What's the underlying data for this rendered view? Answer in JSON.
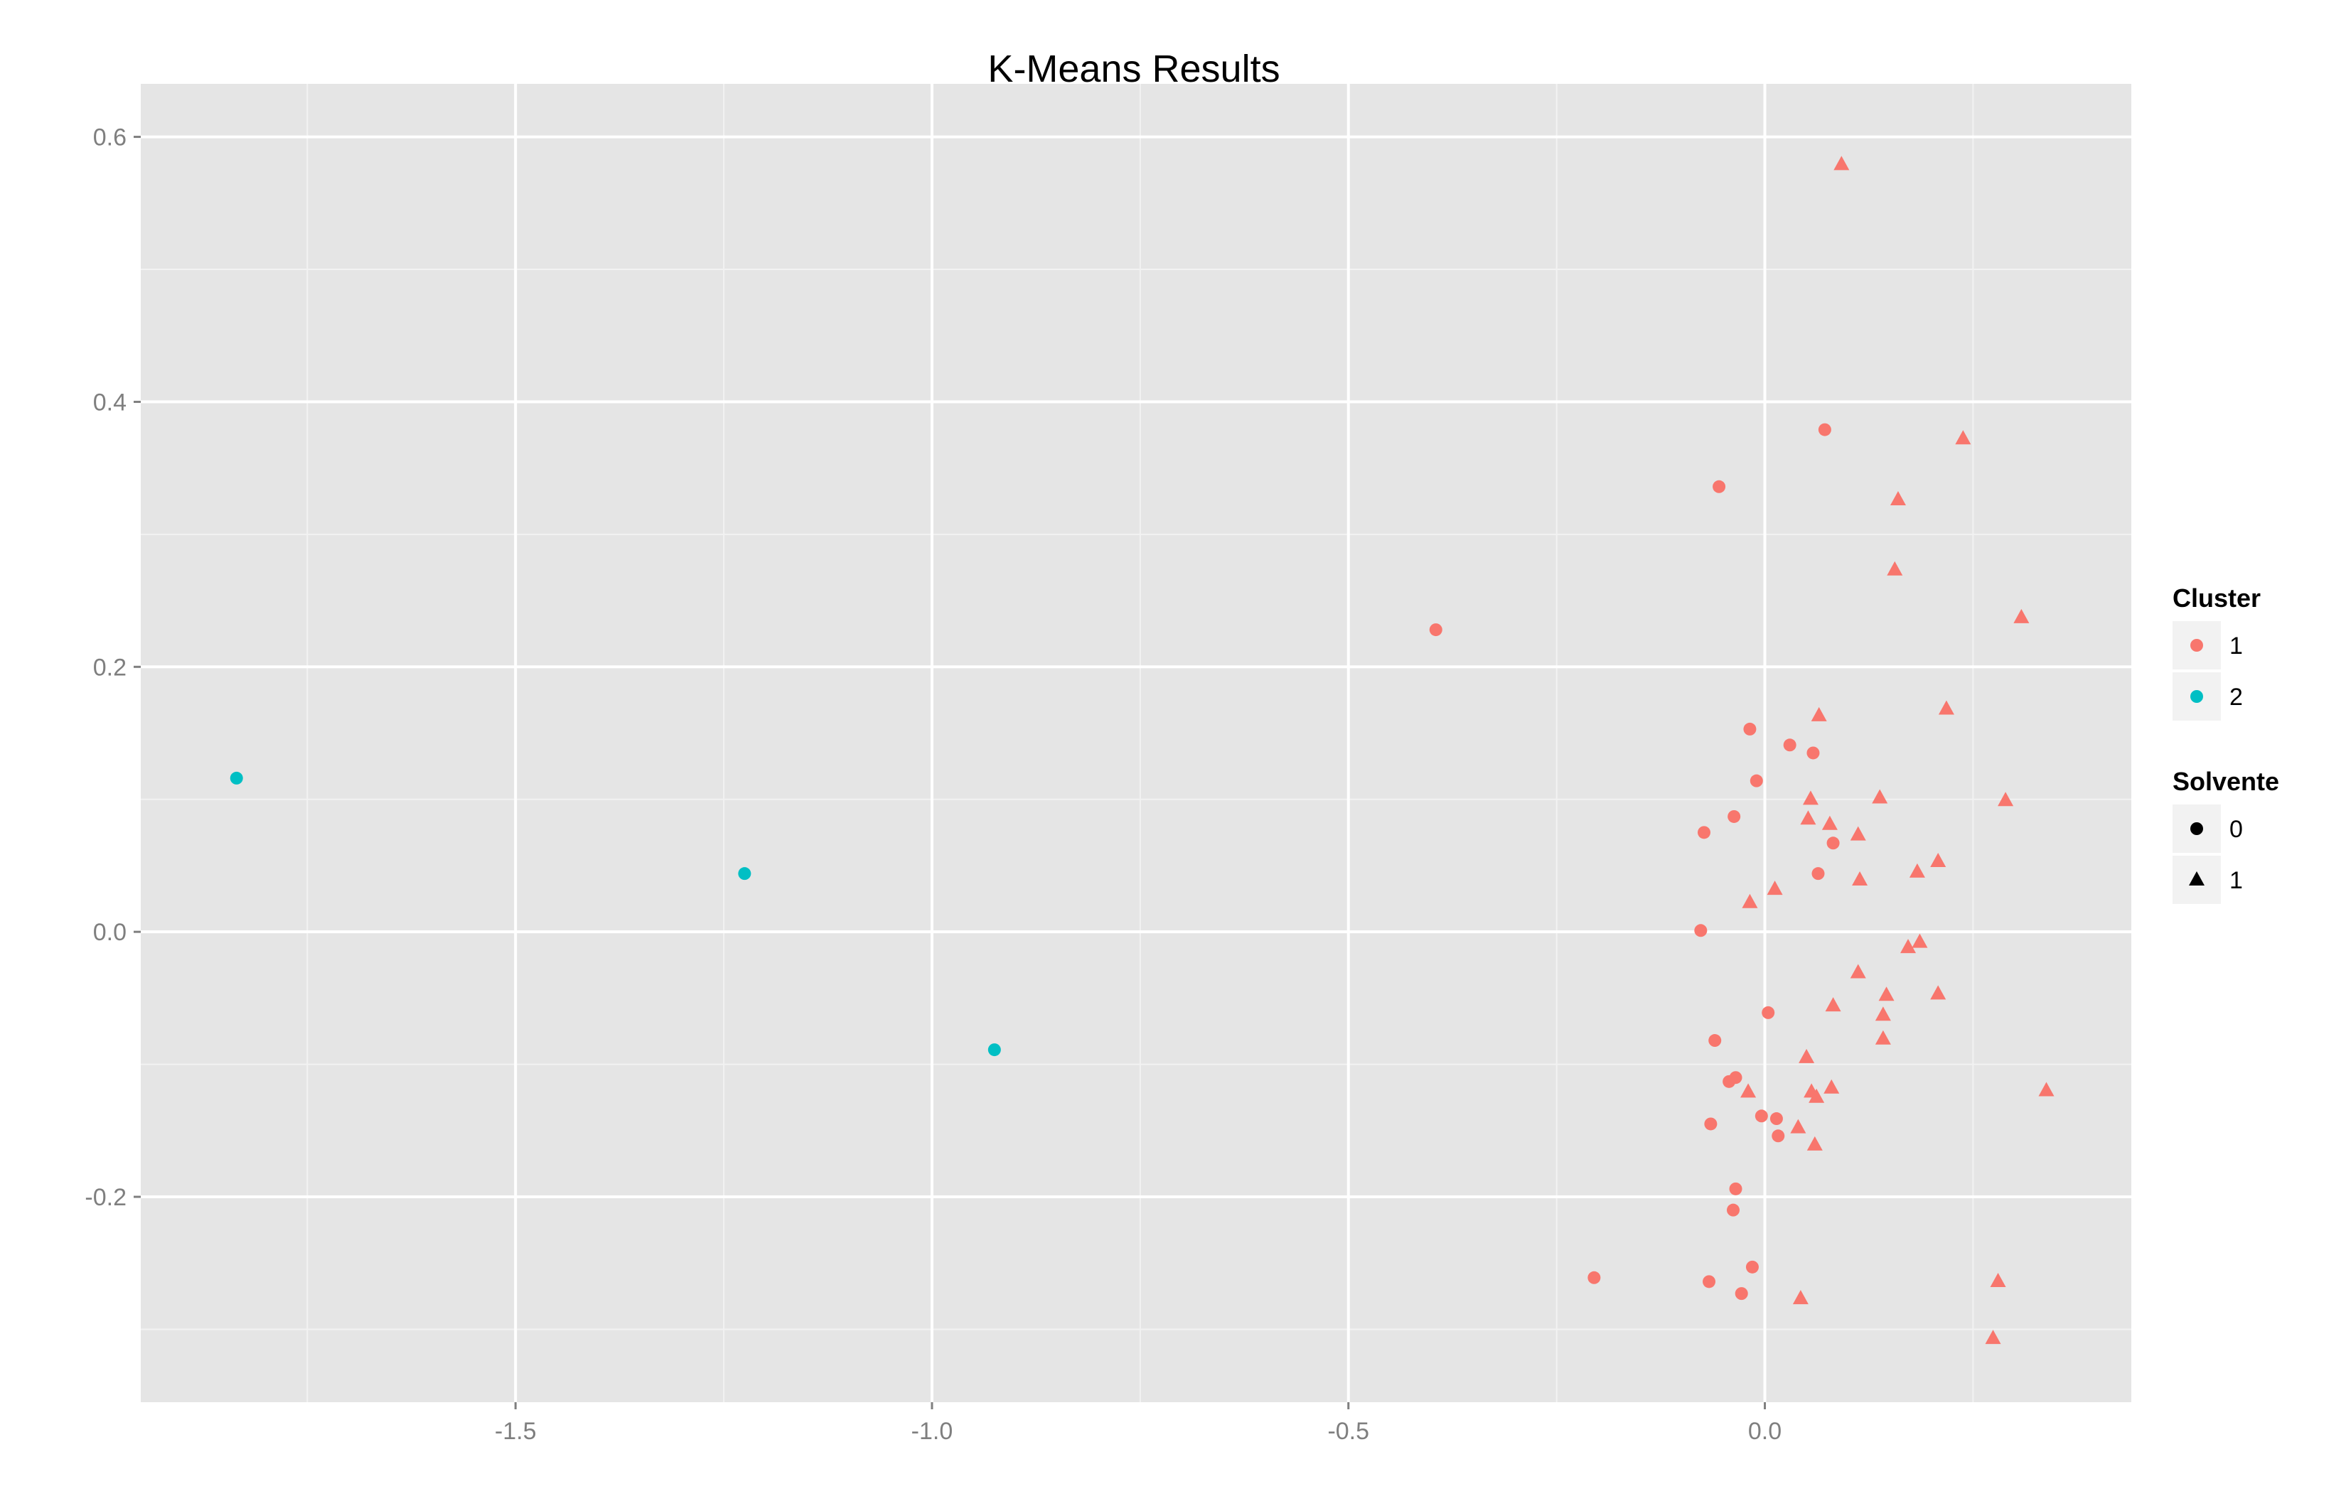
{
  "chart_data": {
    "type": "scatter",
    "title": "K-Means Results",
    "xlabel": "",
    "ylabel": "",
    "xlim": [
      -1.95,
      0.44
    ],
    "ylim": [
      -0.355,
      0.64
    ],
    "x_ticks": [
      {
        "value": -1.5,
        "label": "-1.5"
      },
      {
        "value": -1.0,
        "label": "-1.0"
      },
      {
        "value": -0.5,
        "label": "-0.5"
      },
      {
        "value": 0.0,
        "label": "0.0"
      }
    ],
    "y_ticks": [
      {
        "value": 0.6,
        "label": "0.6"
      },
      {
        "value": 0.4,
        "label": "0.4"
      },
      {
        "value": 0.2,
        "label": "0.2"
      },
      {
        "value": 0.0,
        "label": "0.0"
      },
      {
        "value": -0.2,
        "label": "-0.2"
      }
    ],
    "grid": true,
    "legend_position": "right",
    "colors": {
      "panel_bg": "#E5E5E5",
      "grid_major": "#FFFFFF",
      "grid_minor": "#F2F2F2",
      "cluster_1": "#F8766D",
      "cluster_2": "#00BFC4",
      "legend_key_bg": "#F2F2F2",
      "shape_key": "#000000"
    },
    "legend": {
      "cluster": {
        "title": "Cluster",
        "entries": [
          {
            "label": "1",
            "color": "#F8766D"
          },
          {
            "label": "2",
            "color": "#00BFC4"
          }
        ]
      },
      "solvente": {
        "title": "Solvente",
        "entries": [
          {
            "label": "0",
            "shape": "circle"
          },
          {
            "label": "1",
            "shape": "triangle"
          }
        ]
      }
    },
    "points": [
      {
        "x": -1.835,
        "y": 0.116,
        "cluster": "2",
        "solvente": "0"
      },
      {
        "x": -1.225,
        "y": 0.044,
        "cluster": "2",
        "solvente": "0"
      },
      {
        "x": -0.925,
        "y": -0.089,
        "cluster": "2",
        "solvente": "0"
      },
      {
        "x": -0.395,
        "y": 0.228,
        "cluster": "1",
        "solvente": "0"
      },
      {
        "x": -0.055,
        "y": 0.336,
        "cluster": "1",
        "solvente": "0"
      },
      {
        "x": 0.072,
        "y": 0.379,
        "cluster": "1",
        "solvente": "0"
      },
      {
        "x": -0.018,
        "y": 0.153,
        "cluster": "1",
        "solvente": "0"
      },
      {
        "x": 0.03,
        "y": 0.141,
        "cluster": "1",
        "solvente": "0"
      },
      {
        "x": 0.058,
        "y": 0.135,
        "cluster": "1",
        "solvente": "0"
      },
      {
        "x": -0.01,
        "y": 0.114,
        "cluster": "1",
        "solvente": "0"
      },
      {
        "x": -0.037,
        "y": 0.087,
        "cluster": "1",
        "solvente": "0"
      },
      {
        "x": -0.073,
        "y": 0.075,
        "cluster": "1",
        "solvente": "0"
      },
      {
        "x": 0.082,
        "y": 0.067,
        "cluster": "1",
        "solvente": "0"
      },
      {
        "x": 0.064,
        "y": 0.044,
        "cluster": "1",
        "solvente": "0"
      },
      {
        "x": -0.077,
        "y": 0.001,
        "cluster": "1",
        "solvente": "0"
      },
      {
        "x": 0.004,
        "y": -0.061,
        "cluster": "1",
        "solvente": "0"
      },
      {
        "x": -0.06,
        "y": -0.082,
        "cluster": "1",
        "solvente": "0"
      },
      {
        "x": -0.035,
        "y": -0.11,
        "cluster": "1",
        "solvente": "0"
      },
      {
        "x": -0.043,
        "y": -0.113,
        "cluster": "1",
        "solvente": "0"
      },
      {
        "x": -0.004,
        "y": -0.139,
        "cluster": "1",
        "solvente": "0"
      },
      {
        "x": 0.014,
        "y": -0.141,
        "cluster": "1",
        "solvente": "0"
      },
      {
        "x": -0.065,
        "y": -0.145,
        "cluster": "1",
        "solvente": "0"
      },
      {
        "x": 0.016,
        "y": -0.154,
        "cluster": "1",
        "solvente": "0"
      },
      {
        "x": -0.035,
        "y": -0.194,
        "cluster": "1",
        "solvente": "0"
      },
      {
        "x": -0.038,
        "y": -0.21,
        "cluster": "1",
        "solvente": "0"
      },
      {
        "x": -0.015,
        "y": -0.253,
        "cluster": "1",
        "solvente": "0"
      },
      {
        "x": -0.205,
        "y": -0.261,
        "cluster": "1",
        "solvente": "0"
      },
      {
        "x": -0.067,
        "y": -0.264,
        "cluster": "1",
        "solvente": "0"
      },
      {
        "x": -0.028,
        "y": -0.273,
        "cluster": "1",
        "solvente": "0"
      },
      {
        "x": 0.092,
        "y": 0.579,
        "cluster": "1",
        "solvente": "1"
      },
      {
        "x": 0.238,
        "y": 0.372,
        "cluster": "1",
        "solvente": "1"
      },
      {
        "x": 0.16,
        "y": 0.326,
        "cluster": "1",
        "solvente": "1"
      },
      {
        "x": 0.156,
        "y": 0.273,
        "cluster": "1",
        "solvente": "1"
      },
      {
        "x": 0.308,
        "y": 0.237,
        "cluster": "1",
        "solvente": "1"
      },
      {
        "x": 0.218,
        "y": 0.168,
        "cluster": "1",
        "solvente": "1"
      },
      {
        "x": 0.065,
        "y": 0.163,
        "cluster": "1",
        "solvente": "1"
      },
      {
        "x": 0.138,
        "y": 0.101,
        "cluster": "1",
        "solvente": "1"
      },
      {
        "x": 0.289,
        "y": 0.099,
        "cluster": "1",
        "solvente": "1"
      },
      {
        "x": 0.055,
        "y": 0.1,
        "cluster": "1",
        "solvente": "1"
      },
      {
        "x": 0.052,
        "y": 0.085,
        "cluster": "1",
        "solvente": "1"
      },
      {
        "x": 0.078,
        "y": 0.081,
        "cluster": "1",
        "solvente": "1"
      },
      {
        "x": 0.112,
        "y": 0.073,
        "cluster": "1",
        "solvente": "1"
      },
      {
        "x": 0.208,
        "y": 0.053,
        "cluster": "1",
        "solvente": "1"
      },
      {
        "x": 0.183,
        "y": 0.045,
        "cluster": "1",
        "solvente": "1"
      },
      {
        "x": 0.114,
        "y": 0.039,
        "cluster": "1",
        "solvente": "1"
      },
      {
        "x": 0.012,
        "y": 0.032,
        "cluster": "1",
        "solvente": "1"
      },
      {
        "x": -0.018,
        "y": 0.022,
        "cluster": "1",
        "solvente": "1"
      },
      {
        "x": 0.186,
        "y": -0.008,
        "cluster": "1",
        "solvente": "1"
      },
      {
        "x": 0.172,
        "y": -0.012,
        "cluster": "1",
        "solvente": "1"
      },
      {
        "x": 0.112,
        "y": -0.031,
        "cluster": "1",
        "solvente": "1"
      },
      {
        "x": 0.146,
        "y": -0.048,
        "cluster": "1",
        "solvente": "1"
      },
      {
        "x": 0.208,
        "y": -0.047,
        "cluster": "1",
        "solvente": "1"
      },
      {
        "x": 0.082,
        "y": -0.056,
        "cluster": "1",
        "solvente": "1"
      },
      {
        "x": 0.142,
        "y": -0.063,
        "cluster": "1",
        "solvente": "1"
      },
      {
        "x": 0.142,
        "y": -0.081,
        "cluster": "1",
        "solvente": "1"
      },
      {
        "x": 0.05,
        "y": -0.095,
        "cluster": "1",
        "solvente": "1"
      },
      {
        "x": 0.338,
        "y": -0.12,
        "cluster": "1",
        "solvente": "1"
      },
      {
        "x": 0.08,
        "y": -0.118,
        "cluster": "1",
        "solvente": "1"
      },
      {
        "x": 0.056,
        "y": -0.121,
        "cluster": "1",
        "solvente": "1"
      },
      {
        "x": -0.02,
        "y": -0.121,
        "cluster": "1",
        "solvente": "1"
      },
      {
        "x": 0.062,
        "y": -0.125,
        "cluster": "1",
        "solvente": "1"
      },
      {
        "x": 0.04,
        "y": -0.148,
        "cluster": "1",
        "solvente": "1"
      },
      {
        "x": 0.06,
        "y": -0.161,
        "cluster": "1",
        "solvente": "1"
      },
      {
        "x": 0.28,
        "y": -0.264,
        "cluster": "1",
        "solvente": "1"
      },
      {
        "x": 0.043,
        "y": -0.277,
        "cluster": "1",
        "solvente": "1"
      },
      {
        "x": 0.274,
        "y": -0.307,
        "cluster": "1",
        "solvente": "1"
      }
    ]
  }
}
